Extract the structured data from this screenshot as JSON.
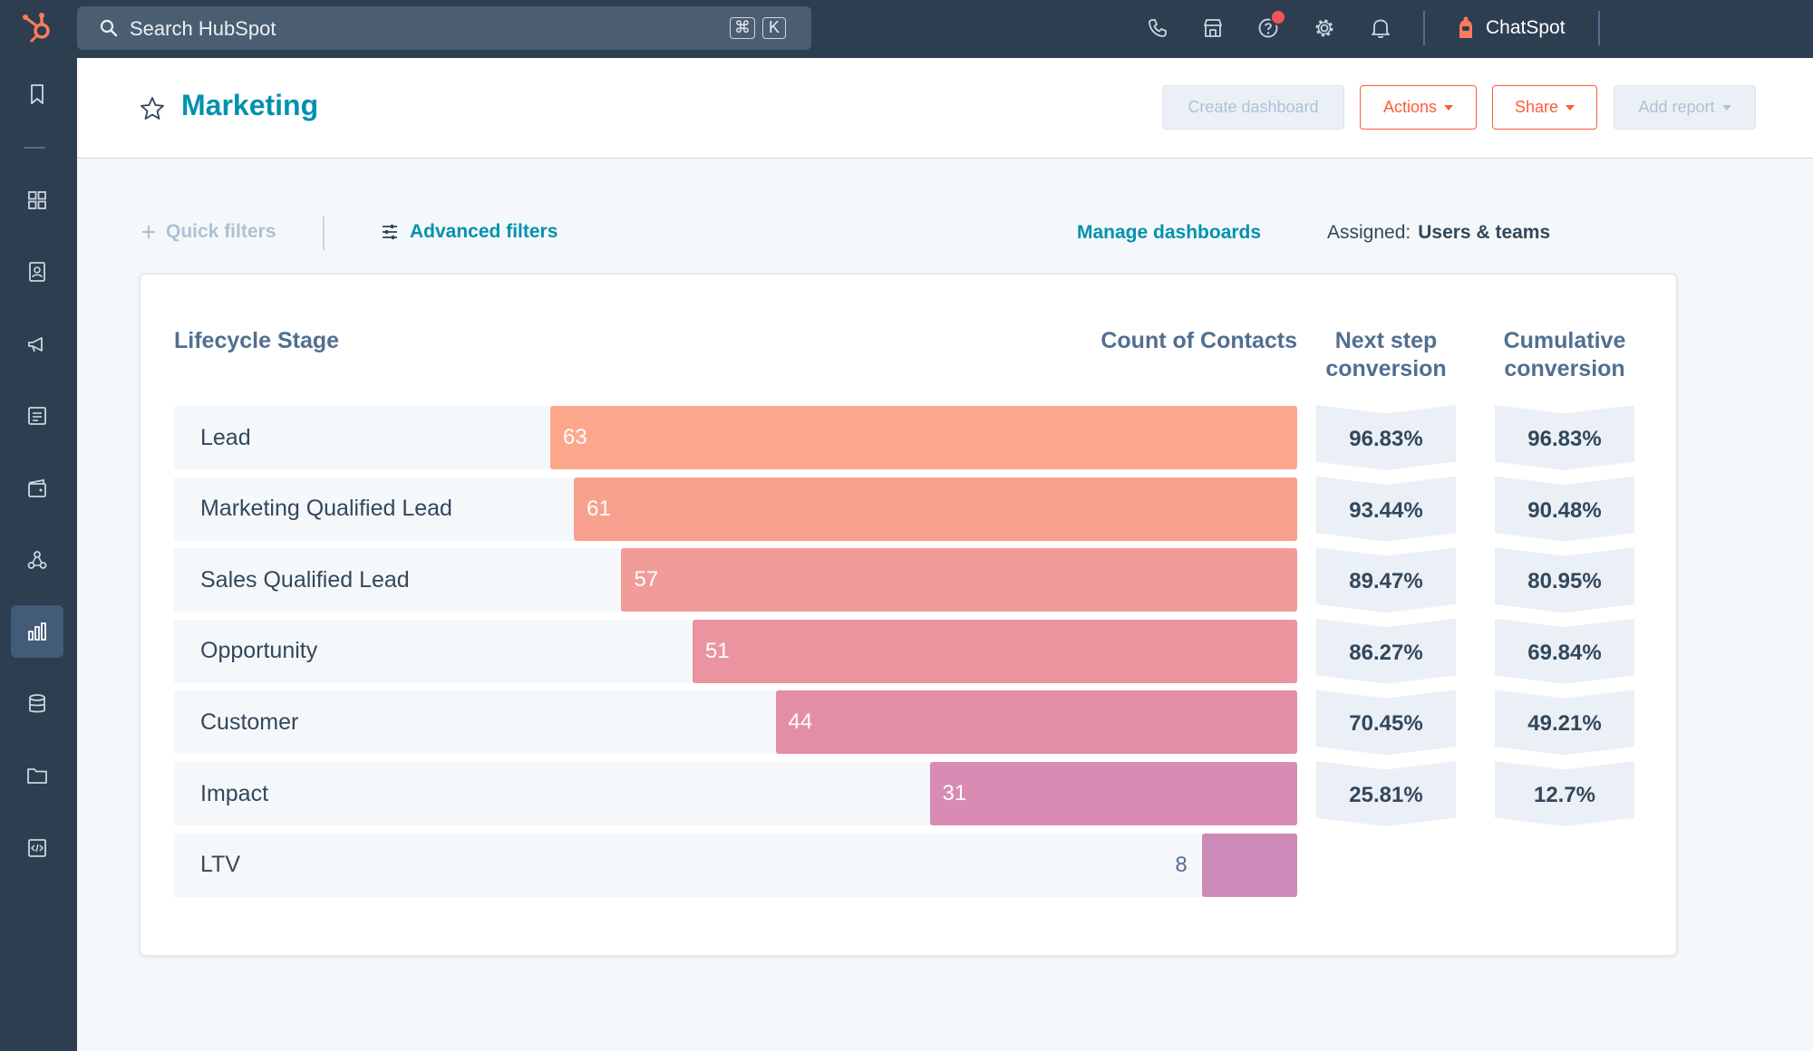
{
  "topbar": {
    "search_placeholder": "Search HubSpot",
    "shortcut_key_1": "⌘",
    "shortcut_key_2": "K",
    "chatspot_label": "ChatSpot"
  },
  "header": {
    "title": "Marketing",
    "buttons": {
      "create_dashboard": "Create dashboard",
      "actions": "Actions",
      "share": "Share",
      "add_report": "Add report"
    }
  },
  "filters": {
    "quick_filters": "Quick filters",
    "advanced_filters": "Advanced filters",
    "manage_dashboards": "Manage dashboards",
    "assigned_label": "Assigned:",
    "assigned_value": "Users & teams"
  },
  "chart_data": {
    "type": "funnel",
    "columns": {
      "stage": "Lifecycle Stage",
      "count": "Count of Contacts",
      "next_line1": "Next step",
      "next_line2": "conversion",
      "cumulative_line1": "Cumulative",
      "cumulative_line2": "conversion"
    },
    "max_value": 63,
    "stages": [
      {
        "label": "Lead",
        "value": 63,
        "next_step": "96.83%",
        "cumulative": "96.83%",
        "color": "#fca78c"
      },
      {
        "label": "Marketing Qualified Lead",
        "value": 61,
        "next_step": "93.44%",
        "cumulative": "90.48%",
        "color": "#f8a18f"
      },
      {
        "label": "Sales Qualified Lead",
        "value": 57,
        "next_step": "89.47%",
        "cumulative": "80.95%",
        "color": "#f19c98"
      },
      {
        "label": "Opportunity",
        "value": 51,
        "next_step": "86.27%",
        "cumulative": "69.84%",
        "color": "#ea94a0"
      },
      {
        "label": "Customer",
        "value": 44,
        "next_step": "70.45%",
        "cumulative": "49.21%",
        "color": "#e48ea6"
      },
      {
        "label": "Impact",
        "value": 31,
        "next_step": "25.81%",
        "cumulative": "12.7%",
        "color": "#d98bb3"
      },
      {
        "label": "LTV",
        "value": 8,
        "next_step": "",
        "cumulative": "",
        "color": "#cd8ab9"
      }
    ]
  }
}
